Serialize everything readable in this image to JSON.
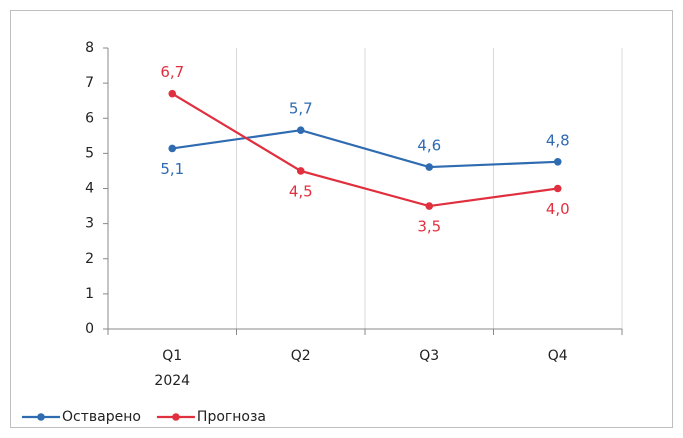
{
  "chart_data": {
    "type": "line",
    "categories": [
      "Q1",
      "Q2",
      "Q3",
      "Q4"
    ],
    "x_group_label": "2024",
    "series": [
      {
        "name": "Остварено",
        "color": "#2e6bb0",
        "values": [
          5.14,
          5.66,
          4.61,
          4.76
        ],
        "value_labels": [
          "5,1",
          "5,7",
          "4,6",
          "4,8"
        ]
      },
      {
        "name": "Прогноза",
        "color": "#e0303f",
        "values": [
          6.7,
          4.5,
          3.5,
          4.0
        ],
        "value_labels": [
          "6,7",
          "4,5",
          "3,5",
          "4,0"
        ]
      }
    ],
    "ylim": [
      0,
      8
    ],
    "yticks": [
      0,
      1,
      2,
      3,
      4,
      5,
      6,
      7,
      8
    ],
    "grid": "x",
    "legend": "bottom-left"
  }
}
